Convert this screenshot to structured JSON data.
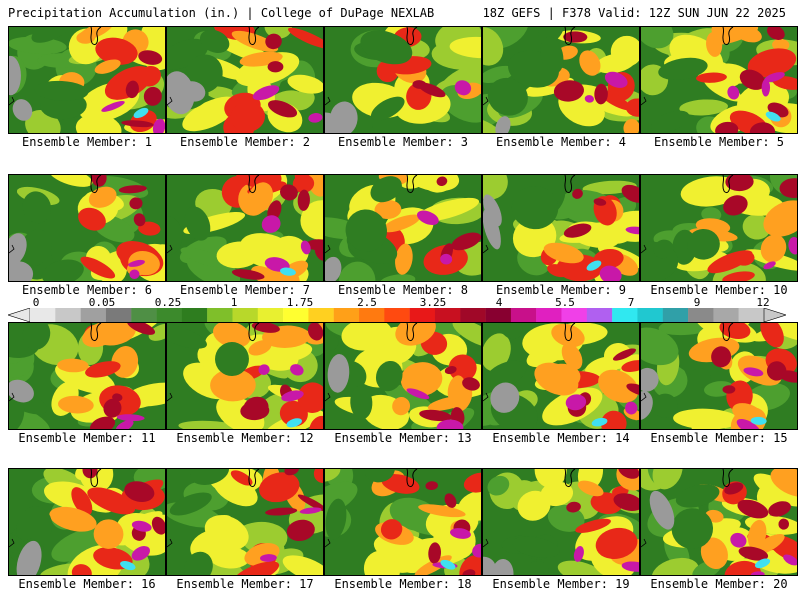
{
  "header": {
    "left": "Precipitation Accumulation (in.) | College of DuPage NEXLAB",
    "right": "18Z GEFS | F378 Valid: 12Z SUN JUN 22 2025"
  },
  "members": [
    "Ensemble Member: 1",
    "Ensemble Member: 2",
    "Ensemble Member: 3",
    "Ensemble Member: 4",
    "Ensemble Member: 5",
    "Ensemble Member: 6",
    "Ensemble Member: 7",
    "Ensemble Member: 8",
    "Ensemble Member: 9",
    "Ensemble Member: 10",
    "Ensemble Member: 11",
    "Ensemble Member: 12",
    "Ensemble Member: 13",
    "Ensemble Member: 14",
    "Ensemble Member: 15",
    "Ensemble Member: 16",
    "Ensemble Member: 17",
    "Ensemble Member: 18",
    "Ensemble Member: 19",
    "Ensemble Member: 20"
  ],
  "colorbar": {
    "tick_labels": [
      "0",
      "0.05",
      "0.25",
      "1",
      "1.75",
      "2.5",
      "3.25",
      "4",
      "5.5",
      "7",
      "9",
      "12"
    ],
    "colors": [
      "#e8e8e8",
      "#c8c8c8",
      "#a0a0a0",
      "#7a7a7a",
      "#4f8f45",
      "#3c8a2c",
      "#2e7d1f",
      "#7fbf2a",
      "#b8d82a",
      "#e8f030",
      "#ffff30",
      "#ffd020",
      "#ffa018",
      "#ff7a10",
      "#ff4a10",
      "#e81818",
      "#c81020",
      "#a00828",
      "#880030",
      "#c8108a",
      "#e020c0",
      "#f040e8",
      "#b060f0",
      "#30e8f0",
      "#20c8d0",
      "#30a0a8",
      "#8a8a8a",
      "#a8a8a8",
      "#c8c8c8"
    ]
  },
  "palette": {
    "gray": "#9a9a9a",
    "dark_green": "#2f7d22",
    "green": "#4d9f2f",
    "light_green": "#9ccc30",
    "yellow": "#f0f030",
    "orange": "#ffa020",
    "red": "#e82818",
    "dark_red": "#a80828",
    "magenta": "#c818a8",
    "cyan": "#40e0f0"
  }
}
